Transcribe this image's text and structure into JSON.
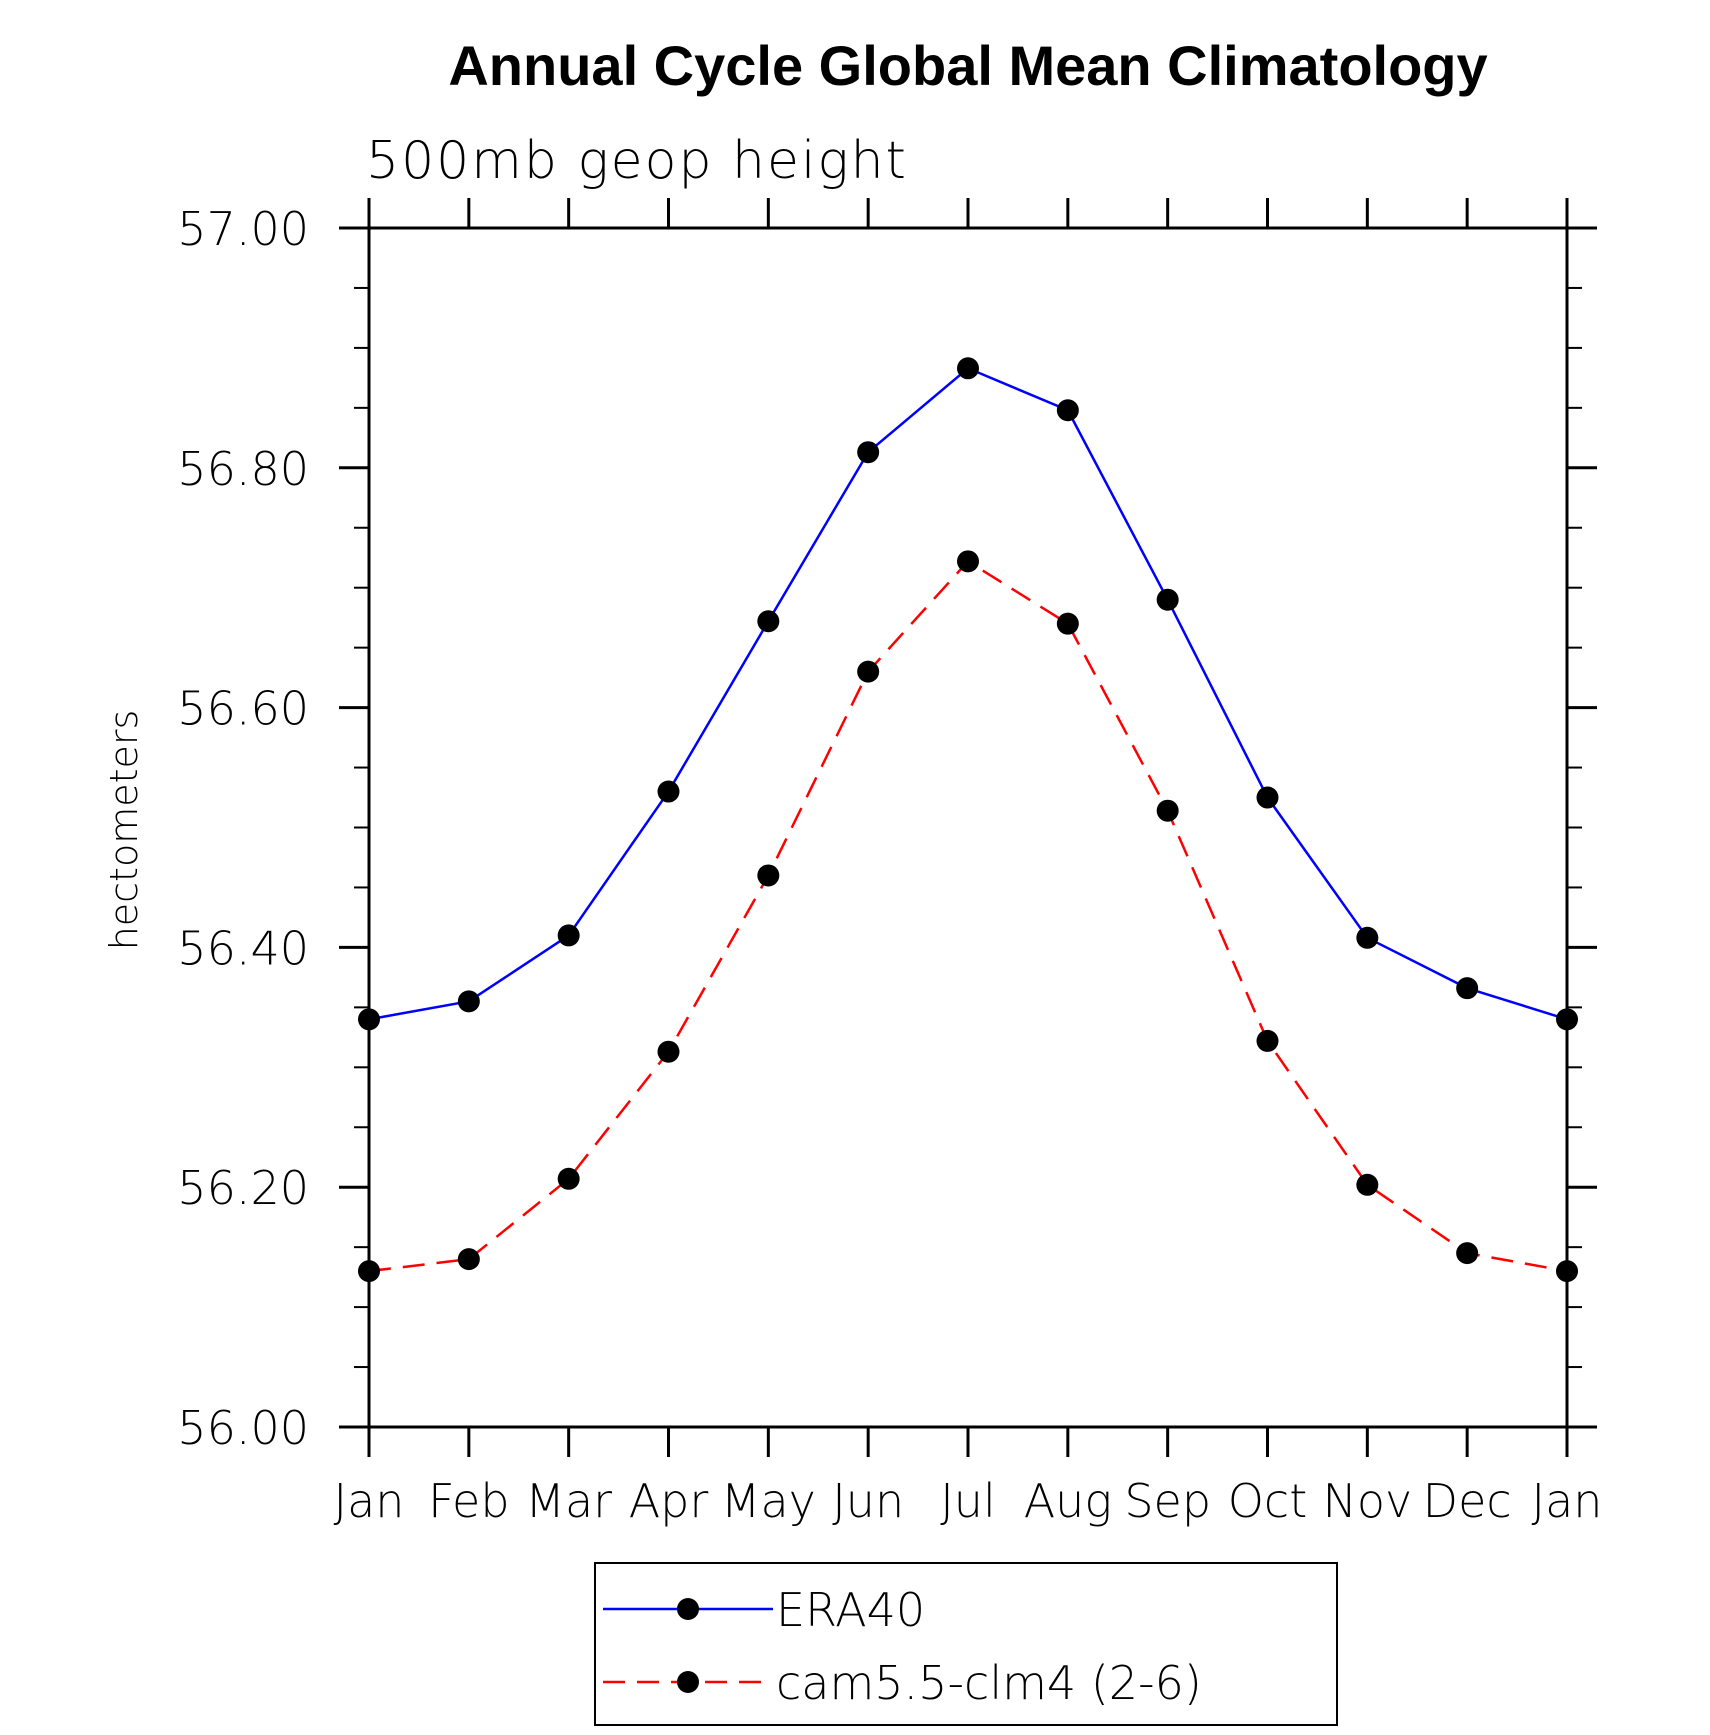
{
  "chart_data": {
    "type": "line",
    "title": "Annual Cycle Global Mean Climatology",
    "subtitle": "500mb geop height",
    "xlabel": "",
    "ylabel": "hectometers",
    "categories": [
      "Jan",
      "Feb",
      "Mar",
      "Apr",
      "May",
      "Jun",
      "Jul",
      "Aug",
      "Sep",
      "Oct",
      "Nov",
      "Dec",
      "Jan"
    ],
    "ylim": [
      56.0,
      57.0
    ],
    "yticks": [
      "56.00",
      "56.20",
      "56.40",
      "56.60",
      "56.80",
      "57.00"
    ],
    "ytick_values": [
      56.0,
      56.2,
      56.4,
      56.6,
      56.8,
      57.0
    ],
    "grid": false,
    "legend_position": "bottom-center",
    "series": [
      {
        "name": "ERA40",
        "color": "#0000ff",
        "line_style": "solid",
        "marker": "filled-circle",
        "marker_color": "#000000",
        "values": [
          56.34,
          56.355,
          56.41,
          56.53,
          56.672,
          56.813,
          56.883,
          56.848,
          56.69,
          56.525,
          56.408,
          56.366,
          56.34
        ]
      },
      {
        "name": "cam5.5-clm4 (2-6)",
        "color": "#ff0000",
        "line_style": "dashed",
        "marker": "filled-circle",
        "marker_color": "#000000",
        "values": [
          56.13,
          56.14,
          56.207,
          56.313,
          56.46,
          56.63,
          56.722,
          56.67,
          56.514,
          56.322,
          56.202,
          56.145,
          56.13
        ]
      }
    ]
  }
}
